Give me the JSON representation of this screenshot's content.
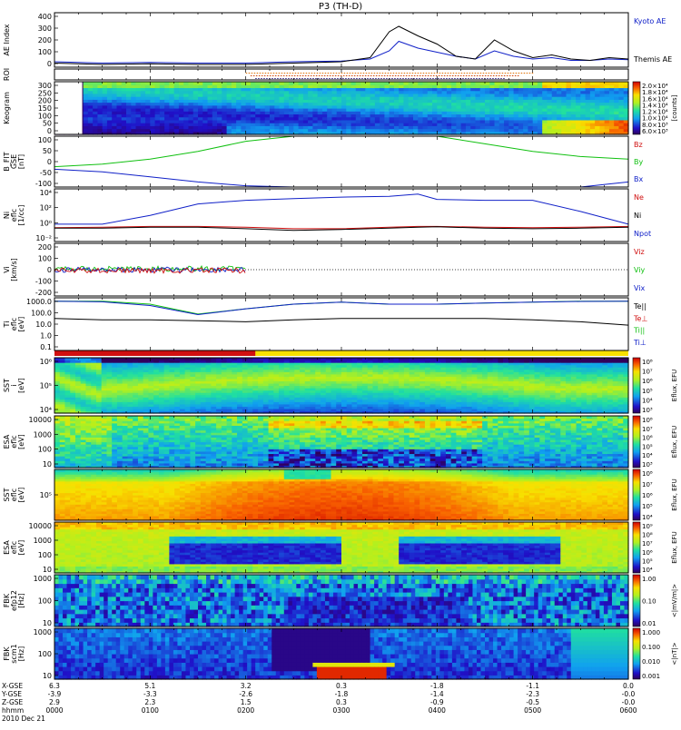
{
  "title": "P3 (TH-D)",
  "colors": {
    "blue": "#1020c8",
    "red": "#d01010",
    "green": "#10c010",
    "black": "#000000",
    "orange": "#e07000",
    "yellow": "#f8e000"
  },
  "panels": [
    {
      "id": "ae",
      "ylabel": [
        "AE Index"
      ],
      "ticks": [
        "400",
        "300",
        "200",
        "100",
        "0"
      ],
      "legend": [
        {
          "text": "Kyoto AE",
          "color": "#1020c8"
        },
        {
          "text": "Themis AE",
          "color": "#000000"
        }
      ]
    },
    {
      "id": "roi",
      "ylabel": [
        "ROI"
      ],
      "ticks": [],
      "legend": []
    },
    {
      "id": "keogram",
      "ylabel": [
        "Keogram"
      ],
      "ticks": [
        "300",
        "250",
        "200",
        "150",
        "100",
        "50",
        "0"
      ],
      "legend": []
    },
    {
      "id": "bfield",
      "ylabel": [
        "B_FIT",
        "GSE",
        "[nT]"
      ],
      "ticks": [
        "100",
        "50",
        "0",
        "-50",
        "-100"
      ],
      "legend": [
        {
          "text": "Bz",
          "color": "#d01010"
        },
        {
          "text": "By",
          "color": "#10c010"
        },
        {
          "text": "Bx",
          "color": "#1020c8"
        }
      ]
    },
    {
      "id": "density",
      "ylabel": [
        "Ni",
        "eflc",
        "[1/cc]"
      ],
      "ticks": [
        "10⁴",
        "10²",
        "10⁰",
        "10⁻²"
      ],
      "legend": [
        {
          "text": "Ne",
          "color": "#d01010"
        },
        {
          "text": "Ni",
          "color": "#000000"
        },
        {
          "text": "Npot",
          "color": "#1020c8"
        }
      ]
    },
    {
      "id": "velocity",
      "ylabel": [
        "Vi",
        "[km/s]"
      ],
      "ticks": [
        "200",
        "100",
        "0",
        "-100",
        "-200"
      ],
      "legend": [
        {
          "text": "Viz",
          "color": "#d01010"
        },
        {
          "text": "Viy",
          "color": "#10c010"
        },
        {
          "text": "Vix",
          "color": "#1020c8"
        }
      ]
    },
    {
      "id": "temperature",
      "ylabel": [
        "Ti",
        "eflc",
        "[eV]"
      ],
      "ticks": [
        "1000.0",
        "100.0",
        "10.0",
        "1.0",
        "0.1"
      ],
      "legend": [
        {
          "text": "Te||",
          "color": "#000000"
        },
        {
          "text": "Te⊥",
          "color": "#d01010"
        },
        {
          "text": "Ti||",
          "color": "#10c010"
        },
        {
          "text": "Ti⊥",
          "color": "#1020c8"
        }
      ]
    },
    {
      "id": "sst_i",
      "ylabel": [
        "SST",
        "i",
        "[eV]"
      ],
      "ticks": [
        "10⁶",
        "10⁵",
        "10⁴"
      ],
      "legend": []
    },
    {
      "id": "esa_i",
      "ylabel": [
        "ESA",
        "eflc",
        "[eV]"
      ],
      "ticks": [
        "10000",
        "1000",
        "100",
        "10"
      ],
      "legend": []
    },
    {
      "id": "sst_e",
      "ylabel": [
        "SST",
        "eflc",
        "[eV]"
      ],
      "ticks": [
        "10⁵"
      ],
      "legend": []
    },
    {
      "id": "esa_e",
      "ylabel": [
        "ESA",
        "eflc",
        "[eV]"
      ],
      "ticks": [
        "10000",
        "1000",
        "100",
        "10"
      ],
      "legend": []
    },
    {
      "id": "fbk_e",
      "ylabel": [
        "FBK",
        "efp12",
        "[Hz]"
      ],
      "ticks": [
        "1000",
        "100",
        "10"
      ],
      "legend": []
    },
    {
      "id": "fbk_b",
      "ylabel": [
        "FBK",
        "scm1",
        "[Hz]"
      ],
      "ticks": [
        "1000",
        "100",
        "10"
      ],
      "legend": []
    }
  ],
  "colorbars": [
    {
      "id": "cb_keo",
      "labels": [
        "2.0×10⁴",
        "1.8×10⁴",
        "1.6×10⁴",
        "1.4×10⁴",
        "1.2×10⁴",
        "1.0×10⁴",
        "8.0×10³",
        "6.0×10³"
      ],
      "title": "[counts]"
    },
    {
      "id": "cb_sst_i",
      "labels": [
        "10⁸",
        "10⁷",
        "10⁶",
        "10⁵",
        "10⁴",
        "10³"
      ],
      "title": "Eflux, EFU"
    },
    {
      "id": "cb_esa_i",
      "labels": [
        "10⁸",
        "10⁷",
        "10⁶",
        "10⁵",
        "10⁴",
        "10³"
      ],
      "title": "Eflux, EFU"
    },
    {
      "id": "cb_sst_e",
      "labels": [
        "10⁸",
        "10⁷",
        "10⁶",
        "10⁵",
        "10⁴"
      ],
      "title": "Eflux, EFU"
    },
    {
      "id": "cb_esa_e",
      "labels": [
        "10⁹",
        "10⁸",
        "10⁷",
        "10⁶",
        "10⁵",
        "10⁴"
      ],
      "title": "Eflux, EFU"
    },
    {
      "id": "cb_fbk_e",
      "labels": [
        "1.00",
        "0.10",
        "0.01"
      ],
      "title": "<|mV/m|>"
    },
    {
      "id": "cb_fbk_b",
      "labels": [
        "1.000",
        "0.100",
        "0.010",
        "0.001"
      ],
      "title": "<|nT|>"
    }
  ],
  "xaxis": {
    "row_labels": [
      "X-GSE",
      "Y-GSE",
      "Z-GSE",
      "hhmm",
      "2010 Dec 21"
    ],
    "columns": [
      {
        "x": "6.3",
        "y": "-3.9",
        "z": "2.9",
        "t": "0000"
      },
      {
        "x": "5.1",
        "y": "-3.3",
        "z": "2.3",
        "t": "0100"
      },
      {
        "x": "3.2",
        "y": "-2.6",
        "z": "1.5",
        "t": "0200"
      },
      {
        "x": "0.3",
        "y": "-1.8",
        "z": "0.3",
        "t": "0300"
      },
      {
        "x": "-1.8",
        "y": "-1.4",
        "z": "-0.9",
        "t": "0400"
      },
      {
        "x": "-1.1",
        "y": "-2.3",
        "z": "-0.5",
        "t": "0500"
      },
      {
        "x": "0.0",
        "y": "-0.0",
        "z": "-0.0",
        "t": "0600"
      }
    ]
  },
  "chart_data": [
    {
      "type": "line",
      "title": "P3 (TH-D)",
      "ylabel": "AE Index",
      "ylim": [
        0,
        400
      ],
      "x_hours": [
        0,
        0.5,
        1,
        1.5,
        2,
        2.5,
        3,
        3.3,
        3.5,
        3.6,
        3.8,
        4,
        4.2,
        4.4,
        4.6,
        4.8,
        5,
        5.2,
        5.4,
        5.6,
        5.8,
        6
      ],
      "series": [
        {
          "name": "Kyoto AE",
          "values": [
            40,
            30,
            35,
            30,
            30,
            40,
            45,
            60,
            120,
            190,
            140,
            110,
            80,
            60,
            120,
            80,
            60,
            70,
            50,
            50,
            60,
            55
          ]
        },
        {
          "name": "Themis AE",
          "values": [
            30,
            20,
            25,
            20,
            20,
            30,
            40,
            70,
            260,
            300,
            230,
            170,
            80,
            60,
            200,
            120,
            70,
            90,
            60,
            50,
            70,
            60
          ]
        }
      ]
    },
    {
      "type": "line",
      "ylabel": "B_FIT GSE [nT]",
      "ylim": [
        -100,
        100
      ],
      "x_hours": [
        0,
        0.5,
        1,
        1.5,
        2,
        2.5,
        2.8,
        3,
        3.2,
        3.5,
        3.6,
        3.8,
        4,
        4.5,
        5,
        5.5,
        6
      ],
      "series": [
        {
          "name": "Bz",
          "values": [
            null,
            null,
            null,
            null,
            null,
            null,
            null,
            null,
            null,
            null,
            null,
            null,
            null,
            null,
            null,
            null,
            null
          ]
        },
        {
          "name": "By",
          "values": [
            -20,
            -10,
            10,
            40,
            80,
            100,
            null,
            null,
            null,
            -100,
            -100,
            null,
            100,
            70,
            40,
            20,
            10
          ]
        },
        {
          "name": "Bx",
          "values": [
            -30,
            -40,
            -60,
            -80,
            -95,
            -100,
            null,
            null,
            null,
            -100,
            null,
            100,
            null,
            null,
            null,
            -100,
            -80
          ]
        }
      ]
    },
    {
      "type": "line",
      "ylabel": "Ni eflc [1/cc]",
      "scale": "log",
      "ylim": [
        0.01,
        100000
      ],
      "x_hours": [
        0,
        0.5,
        1,
        1.5,
        2,
        2.5,
        3,
        3.5,
        3.8,
        4,
        4.5,
        5,
        5.5,
        6
      ],
      "series": [
        {
          "name": "Ne",
          "values": [
            0.7,
            0.8,
            1,
            1,
            0.8,
            0.5,
            0.5,
            0.8,
            1,
            1,
            0.8,
            0.7,
            0.8,
            1
          ]
        },
        {
          "name": "Ni",
          "values": [
            0.6,
            0.6,
            0.8,
            0.8,
            0.5,
            0.3,
            0.4,
            0.6,
            0.8,
            0.9,
            0.6,
            0.5,
            0.6,
            0.8
          ]
        },
        {
          "name": "Npot",
          "values": [
            2,
            2,
            30,
            1000,
            3000,
            5000,
            8000,
            10000,
            20000,
            4000,
            3000,
            3000,
            100,
            2
          ]
        }
      ]
    },
    {
      "type": "line",
      "ylabel": "Ti eflc [eV]",
      "scale": "log",
      "ylim": [
        0.05,
        3000
      ],
      "x_hours": [
        0,
        0.5,
        1,
        1.5,
        2,
        2.5,
        3,
        3.5,
        4,
        4.5,
        5,
        5.5,
        6
      ],
      "series": [
        {
          "name": "Te||",
          "values": [
            40,
            30,
            30,
            25,
            20,
            30,
            40,
            40,
            40,
            40,
            30,
            20,
            10
          ]
        },
        {
          "name": "Te⊥",
          "values": [
            null,
            null,
            null,
            null,
            null,
            null,
            null,
            null,
            null,
            null,
            null,
            null,
            null
          ]
        },
        {
          "name": "Ti||",
          "values": [
            1500,
            1500,
            800,
            100,
            300,
            800,
            1200,
            800,
            800,
            1000,
            1200,
            1500,
            1500
          ]
        },
        {
          "name": "Ti⊥",
          "values": [
            1500,
            1300,
            600,
            90,
            300,
            800,
            1200,
            800,
            800,
            1000,
            1200,
            1400,
            1500
          ]
        }
      ]
    }
  ]
}
